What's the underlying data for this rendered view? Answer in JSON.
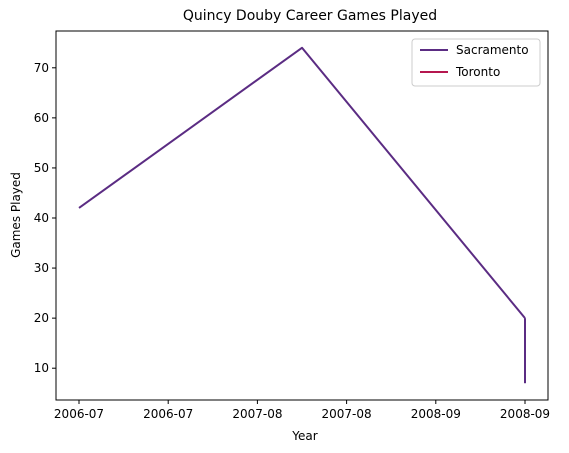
{
  "chart_data": {
    "type": "line",
    "title": "Quincy Douby Career Games Played",
    "xlabel": "Year",
    "ylabel": "Games Played",
    "x_tick_labels": [
      "2006-07",
      "2006-07",
      "2007-08",
      "2007-08",
      "2008-09",
      "2008-09"
    ],
    "y_ticks": [
      10,
      20,
      30,
      40,
      50,
      60,
      70
    ],
    "ylim": [
      3.65,
      77.35
    ],
    "grid": false,
    "legend_position": "upper-right",
    "series": [
      {
        "name": "Sacramento",
        "color": "#5b2c83",
        "points": [
          {
            "x": "2006-07",
            "y": 42
          },
          {
            "x": "2007-08",
            "y": 74
          },
          {
            "x": "2008-09",
            "y": 20
          }
        ]
      },
      {
        "name": "Toronto",
        "color": "#b5174f",
        "points": [
          {
            "x": "2008-09",
            "y": 7
          }
        ]
      }
    ],
    "connector": {
      "x": "2008-09",
      "from_y": 20,
      "to_y": 7,
      "color": "#5b2c83"
    }
  }
}
